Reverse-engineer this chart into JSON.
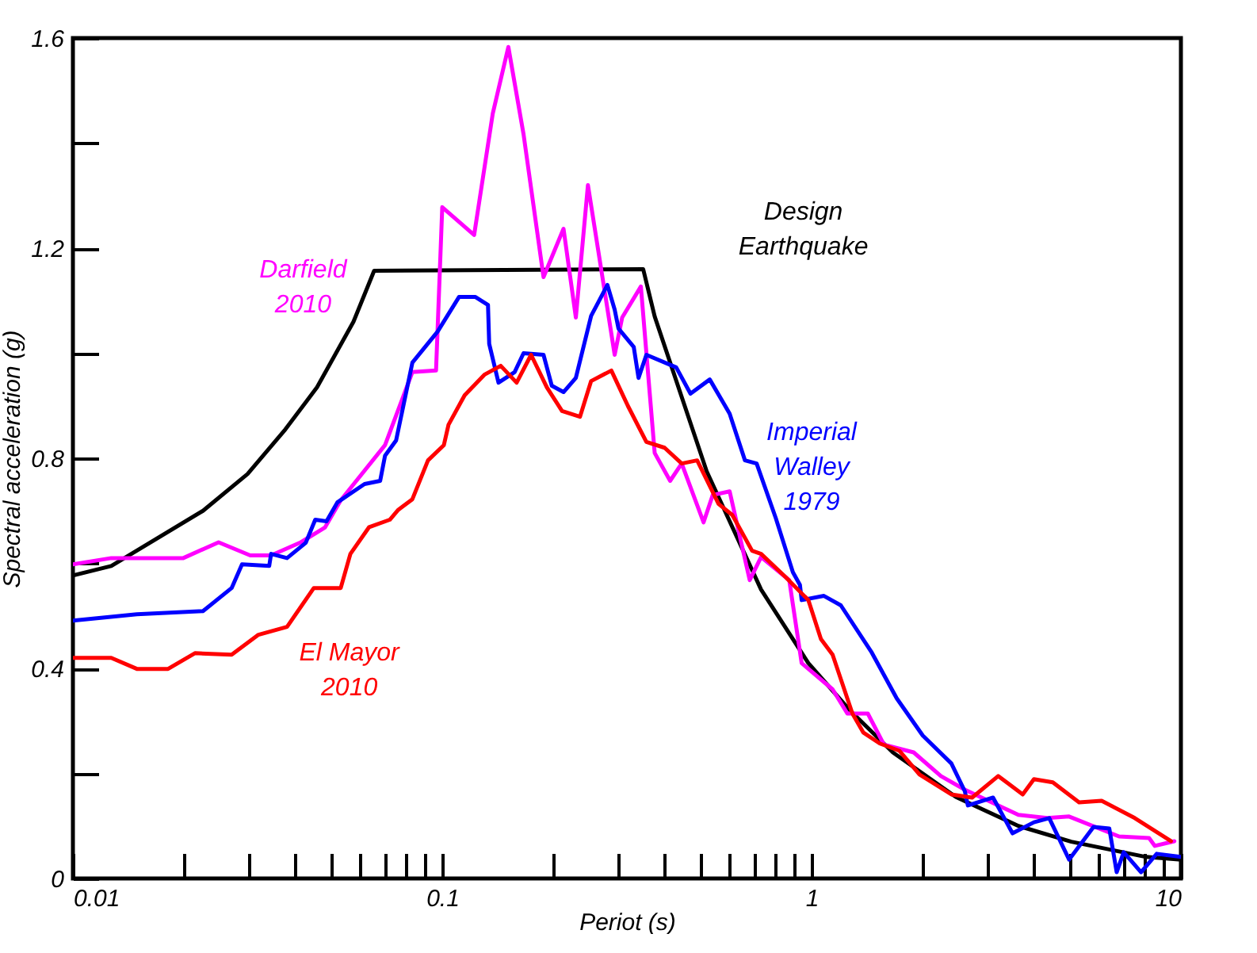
{
  "chart_data": {
    "type": "line",
    "xlabel": "Periot (s)",
    "ylabel": "Spectral acceleration (g)",
    "log": "x",
    "grid": false,
    "legend": false,
    "marker": "none",
    "line_style": "solid",
    "xlim": [
      0.01,
      10
    ],
    "ylim": [
      0,
      1.6
    ],
    "xticks": [
      0.01,
      {
        "value": 0.02,
        "label": null
      },
      {
        "value": 0.03,
        "label": null
      },
      {
        "value": 0.04,
        "label": null
      },
      {
        "value": 0.05,
        "label": null
      },
      {
        "value": 0.06,
        "label": null
      },
      {
        "value": 0.07,
        "label": null
      },
      {
        "value": 0.08,
        "label": null
      },
      {
        "value": 0.09,
        "label": null
      },
      0.1,
      {
        "value": 0.2,
        "label": null
      },
      {
        "value": 0.3,
        "label": null
      },
      {
        "value": 0.4,
        "label": null
      },
      {
        "value": 0.5,
        "label": null
      },
      {
        "value": 0.6,
        "label": null
      },
      {
        "value": 0.7,
        "label": null
      },
      {
        "value": 0.8,
        "label": null
      },
      {
        "value": 0.9,
        "label": null
      },
      1,
      {
        "value": 2,
        "label": null
      },
      {
        "value": 3,
        "label": null
      },
      {
        "value": 4,
        "label": null
      },
      {
        "value": 5,
        "label": null
      },
      {
        "value": 6,
        "label": null
      },
      {
        "value": 7,
        "label": null
      },
      {
        "value": 8,
        "label": null
      },
      {
        "value": 9,
        "label": null
      },
      10
    ],
    "yticks": [
      0,
      {
        "value": 0.2,
        "label": null
      },
      0.4,
      {
        "value": 0.6,
        "label": null
      },
      0.8,
      {
        "value": 1.0,
        "label": null
      },
      1.2,
      {
        "value": 1.4,
        "label": null
      },
      1.6
    ],
    "series": [
      {
        "name": "Design\nEarthquake",
        "color": "#000000",
        "x": [
          0.01,
          0.0127,
          0.0225,
          0.0297,
          0.0376,
          0.0458,
          0.0575,
          0.0654,
          0.35,
          0.376,
          0.52,
          0.73,
          0.98,
          1.27,
          1.66,
          2.46,
          3.63,
          5.05,
          8.05,
          10
        ],
        "values": [
          0.577,
          0.595,
          0.7,
          0.77,
          0.855,
          0.935,
          1.06,
          1.157,
          1.16,
          1.07,
          0.775,
          0.55,
          0.41,
          0.32,
          0.24,
          0.155,
          0.1,
          0.07,
          0.041,
          0.036
        ]
      },
      {
        "name": "Darfield\n2010",
        "color": "#ff00ff",
        "x": [
          0.01,
          0.0127,
          0.0199,
          0.0248,
          0.0302,
          0.0344,
          0.0414,
          0.0481,
          0.0531,
          0.07,
          0.083,
          0.0962,
          0.1,
          0.122,
          0.137,
          0.151,
          0.166,
          0.188,
          0.213,
          0.23,
          0.248,
          0.293,
          0.307,
          0.345,
          0.376,
          0.414,
          0.445,
          0.51,
          0.54,
          0.6,
          0.68,
          0.73,
          0.87,
          0.94,
          1.14,
          1.25,
          1.42,
          1.57,
          1.89,
          2.24,
          2.6,
          3.63,
          4.35,
          4.98,
          6.8,
          8.2,
          8.5,
          9.6
        ],
        "values": [
          0.598,
          0.61,
          0.61,
          0.64,
          0.615,
          0.615,
          0.64,
          0.668,
          0.72,
          0.825,
          0.964,
          0.967,
          1.278,
          1.225,
          1.456,
          1.583,
          1.417,
          1.145,
          1.237,
          1.068,
          1.32,
          0.997,
          1.068,
          1.127,
          0.81,
          0.757,
          0.79,
          0.678,
          0.73,
          0.737,
          0.568,
          0.612,
          0.568,
          0.41,
          0.36,
          0.314,
          0.314,
          0.255,
          0.24,
          0.195,
          0.169,
          0.121,
          0.115,
          0.118,
          0.08,
          0.077,
          0.062,
          0.071
        ]
      },
      {
        "name": "Imperial\nWalley\n1979",
        "color": "#0000ff",
        "x": [
          0.01,
          0.0149,
          0.0225,
          0.0269,
          0.0287,
          0.034,
          0.0344,
          0.038,
          0.0427,
          0.0453,
          0.0486,
          0.052,
          0.0616,
          0.0679,
          0.07,
          0.075,
          0.083,
          0.0971,
          0.111,
          0.123,
          0.133,
          0.134,
          0.142,
          0.157,
          0.166,
          0.188,
          0.198,
          0.213,
          0.23,
          0.253,
          0.265,
          0.28,
          0.293,
          0.3,
          0.33,
          0.34,
          0.357,
          0.43,
          0.47,
          0.53,
          0.6,
          0.66,
          0.71,
          0.8,
          0.89,
          0.93,
          0.94,
          1.08,
          1.2,
          1.45,
          1.7,
          2.0,
          2.39,
          2.6,
          2.65,
          3.1,
          3.5,
          4.0,
          4.4,
          4.98,
          5.8,
          6.4,
          6.7,
          7.0,
          7.8,
          8.6,
          10
        ],
        "values": [
          0.491,
          0.503,
          0.509,
          0.553,
          0.598,
          0.595,
          0.618,
          0.61,
          0.639,
          0.683,
          0.68,
          0.716,
          0.751,
          0.757,
          0.805,
          0.834,
          0.982,
          1.041,
          1.107,
          1.107,
          1.092,
          1.018,
          0.944,
          0.964,
          1.0,
          0.997,
          0.938,
          0.926,
          0.953,
          1.071,
          1.098,
          1.13,
          1.083,
          1.047,
          1.012,
          0.953,
          0.997,
          0.973,
          0.923,
          0.95,
          0.885,
          0.796,
          0.79,
          0.686,
          0.583,
          0.559,
          0.53,
          0.538,
          0.52,
          0.432,
          0.343,
          0.272,
          0.219,
          0.166,
          0.139,
          0.154,
          0.086,
          0.107,
          0.115,
          0.036,
          0.098,
          0.095,
          0.012,
          0.05,
          0.012,
          0.047,
          0.041
        ]
      },
      {
        "name": "El Mayor\n2010",
        "color": "#ff0000",
        "x": [
          0.01,
          0.0127,
          0.0149,
          0.0181,
          0.0214,
          0.0269,
          0.0318,
          0.038,
          0.0449,
          0.0531,
          0.0564,
          0.0634,
          0.0721,
          0.0758,
          0.083,
          0.0915,
          0.101,
          0.104,
          0.115,
          0.13,
          0.144,
          0.159,
          0.174,
          0.192,
          0.211,
          0.236,
          0.253,
          0.287,
          0.318,
          0.357,
          0.4,
          0.445,
          0.49,
          0.56,
          0.61,
          0.69,
          0.73,
          0.85,
          0.98,
          1.06,
          1.14,
          1.29,
          1.38,
          1.53,
          1.73,
          1.96,
          2.39,
          2.72,
          3.2,
          3.73,
          4.0,
          4.5,
          5.3,
          6.1,
          7.5,
          9.4
        ],
        "values": [
          0.42,
          0.42,
          0.399,
          0.399,
          0.429,
          0.426,
          0.464,
          0.479,
          0.553,
          0.553,
          0.618,
          0.669,
          0.683,
          0.701,
          0.722,
          0.796,
          0.825,
          0.864,
          0.92,
          0.959,
          0.976,
          0.944,
          0.997,
          0.935,
          0.89,
          0.879,
          0.947,
          0.967,
          0.9,
          0.831,
          0.82,
          0.79,
          0.796,
          0.713,
          0.692,
          0.624,
          0.618,
          0.574,
          0.53,
          0.456,
          0.426,
          0.314,
          0.278,
          0.257,
          0.243,
          0.198,
          0.16,
          0.154,
          0.195,
          0.16,
          0.189,
          0.183,
          0.145,
          0.148,
          0.115,
          0.071
        ]
      }
    ]
  }
}
